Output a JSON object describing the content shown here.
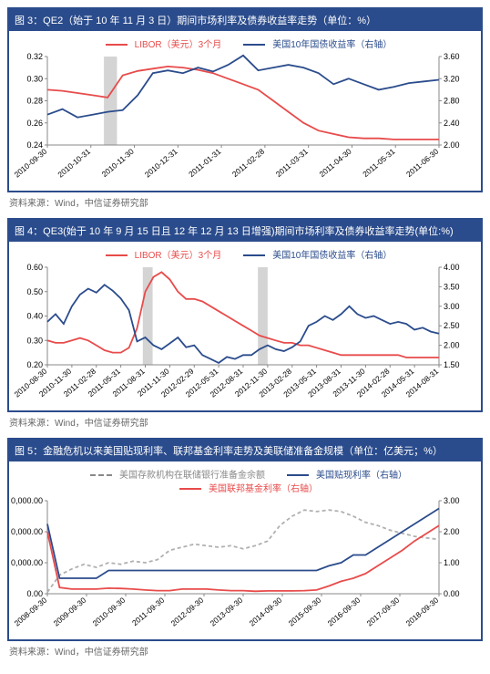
{
  "source_text": "资料来源：Wind，中信证券研究部",
  "colors": {
    "navy": "#2b4c8c",
    "red": "#e84b4b",
    "grey": "#b0b0b0",
    "axis": "#888"
  },
  "chart3": {
    "title": "图 3：QE2（始于 10 年 11 月 3 日）期间市场利率及债券收益率走势（单位：%）",
    "legend": [
      {
        "label": "LIBOR（美元）3个月",
        "color": "#e84b4b"
      },
      {
        "label": "美国10年国债收益率（右轴）",
        "color": "#2b4c8c"
      }
    ],
    "x_labels": [
      "2010-09-30",
      "2010-10-31",
      "2010-11-30",
      "2010-12-31",
      "2011-01-31",
      "2011-02-28",
      "2011-03-31",
      "2011-04-30",
      "2011-05-31",
      "2011-06-30"
    ],
    "y_left": {
      "min": 0.24,
      "max": 0.32,
      "step": 0.02
    },
    "y_right": {
      "min": 2.0,
      "max": 3.6,
      "step": 0.4
    },
    "band": {
      "from": 1.3,
      "to": 1.6
    },
    "libor": [
      0.29,
      0.289,
      0.287,
      0.285,
      0.283,
      0.303,
      0.307,
      0.309,
      0.311,
      0.31,
      0.308,
      0.305,
      0.3,
      0.295,
      0.29,
      0.28,
      0.27,
      0.26,
      0.253,
      0.25,
      0.247,
      0.246,
      0.246,
      0.245,
      0.245,
      0.245,
      0.245
    ],
    "bond": [
      2.55,
      2.65,
      2.5,
      2.55,
      2.6,
      2.63,
      2.9,
      3.3,
      3.35,
      3.3,
      3.4,
      3.33,
      3.45,
      3.62,
      3.35,
      3.4,
      3.45,
      3.4,
      3.3,
      3.1,
      3.2,
      3.1,
      3.0,
      3.05,
      3.12,
      3.15,
      3.18
    ]
  },
  "chart4": {
    "title": "图 4：QE3(始于 10 年 9 月 15 日且 12 年 12 月 13 日增强)期间市场利率及债券收益率走势(单位:%)",
    "legend": [
      {
        "label": "LIBOR（美元）3个月",
        "color": "#e84b4b"
      },
      {
        "label": "美国10年国债收益率（右轴）",
        "color": "#2b4c8c"
      }
    ],
    "x_labels": [
      "2010-08-30",
      "2010-11-30",
      "2011-02-28",
      "2011-05-31",
      "2011-08-31",
      "2011-11-30",
      "2012-02-29",
      "2012-05-31",
      "2012-08-31",
      "2012-11-30",
      "2013-02-28",
      "2013-05-31",
      "2013-08-31",
      "2013-11-30",
      "2014-02-28",
      "2014-05-31",
      "2014-08-31"
    ],
    "y_left": {
      "min": 0.2,
      "max": 0.6,
      "step": 0.1
    },
    "y_right": {
      "min": 1.5,
      "max": 4.0,
      "step": 0.5
    },
    "bands": [
      {
        "from": 3.9,
        "to": 4.3
      },
      {
        "from": 8.6,
        "to": 9.0
      }
    ],
    "libor": [
      0.3,
      0.29,
      0.29,
      0.3,
      0.31,
      0.3,
      0.28,
      0.26,
      0.25,
      0.25,
      0.27,
      0.35,
      0.5,
      0.56,
      0.58,
      0.55,
      0.5,
      0.47,
      0.47,
      0.46,
      0.44,
      0.42,
      0.4,
      0.38,
      0.36,
      0.34,
      0.32,
      0.31,
      0.3,
      0.29,
      0.29,
      0.28,
      0.28,
      0.27,
      0.26,
      0.25,
      0.24,
      0.24,
      0.24,
      0.24,
      0.24,
      0.24,
      0.24,
      0.24,
      0.23,
      0.23,
      0.23,
      0.23,
      0.23
    ],
    "bond": [
      2.6,
      2.8,
      2.55,
      3.0,
      3.3,
      3.45,
      3.35,
      3.55,
      3.4,
      3.2,
      2.9,
      2.1,
      2.2,
      2.0,
      1.9,
      2.05,
      2.2,
      1.95,
      2.0,
      1.75,
      1.65,
      1.55,
      1.7,
      1.65,
      1.75,
      1.75,
      1.9,
      2.0,
      1.9,
      1.85,
      1.95,
      2.1,
      2.5,
      2.6,
      2.75,
      2.65,
      2.8,
      3.0,
      2.8,
      2.7,
      2.75,
      2.65,
      2.55,
      2.6,
      2.55,
      2.4,
      2.45,
      2.35,
      2.3
    ]
  },
  "chart5": {
    "title": "图 5：金融危机以来美国贴现利率、联邦基金利率走势及美联储准备金规模（单位：亿美元；%）",
    "legend": [
      {
        "label": "美国存款机构在联储银行准备金余额",
        "style": "dash",
        "color": "#888"
      },
      {
        "label": "美国贴现利率（右轴）",
        "style": "line",
        "color": "#2b4c8c"
      },
      {
        "label": "美国联邦基金利率（右轴）",
        "style": "line",
        "color": "#e84b4b"
      }
    ],
    "x_labels": [
      "2008-09-30",
      "2009-09-30",
      "2010-09-30",
      "2011-09-30",
      "2012-09-30",
      "2013-09-30",
      "2014-09-30",
      "2015-09-30",
      "2016-09-30",
      "2017-09-30",
      "2018-09-30"
    ],
    "y_left": {
      "min": 0,
      "max": 30000,
      "step": 10000,
      "fmt": "comma1"
    },
    "y_right": {
      "min": 0,
      "max": 3,
      "step": 1
    },
    "reserves": [
      500,
      6000,
      8000,
      9500,
      8500,
      10000,
      9500,
      10500,
      10000,
      11000,
      14000,
      15000,
      16000,
      15500,
      15000,
      15500,
      14500,
      15500,
      17000,
      22000,
      25000,
      27000,
      26500,
      27000,
      26500,
      25000,
      23000,
      22000,
      20500,
      19500,
      18500,
      18000,
      17500
    ],
    "discount": [
      2.25,
      0.5,
      0.5,
      0.5,
      0.5,
      0.75,
      0.75,
      0.75,
      0.75,
      0.75,
      0.75,
      0.75,
      0.75,
      0.75,
      0.75,
      0.75,
      0.75,
      0.75,
      0.75,
      0.75,
      0.75,
      0.75,
      0.75,
      0.9,
      1.0,
      1.25,
      1.25,
      1.5,
      1.75,
      2.0,
      2.25,
      2.5,
      2.75
    ],
    "fedfunds": [
      2.0,
      0.2,
      0.15,
      0.15,
      0.15,
      0.18,
      0.17,
      0.15,
      0.12,
      0.1,
      0.1,
      0.15,
      0.15,
      0.15,
      0.12,
      0.1,
      0.1,
      0.08,
      0.09,
      0.09,
      0.09,
      0.1,
      0.12,
      0.25,
      0.4,
      0.5,
      0.65,
      0.9,
      1.15,
      1.4,
      1.7,
      1.95,
      2.2
    ]
  }
}
